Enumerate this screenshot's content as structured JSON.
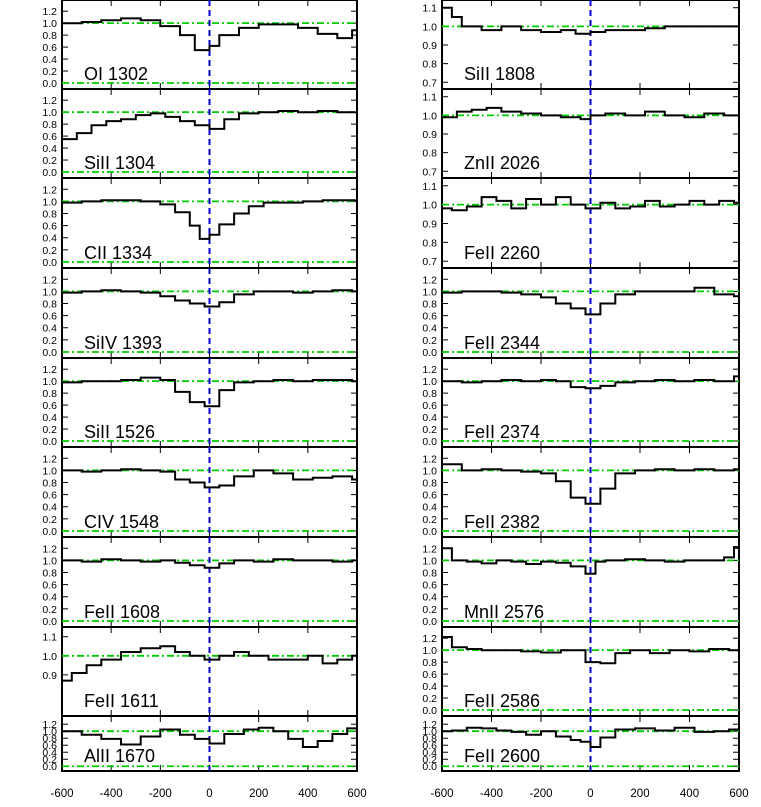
{
  "chart_data": {
    "type": "line",
    "layout": "velocity stack, 2 columns x 9 rows",
    "x_range": [
      -600,
      600
    ],
    "x_ticks": [
      -600,
      -400,
      -200,
      0,
      200,
      400,
      600
    ],
    "x_tick_labels": [
      "-600",
      "-400",
      "-200",
      "0",
      "200",
      "400",
      "600"
    ],
    "reference_lines": {
      "zero_velocity": 0,
      "flux_levels": [
        0.0,
        1.0
      ]
    },
    "grid": false,
    "colors": {
      "spectrum": "#000000",
      "continuum": "#00cc00",
      "zero_velocity": "#0000cc"
    },
    "panels": [
      {
        "label": "OI 1302",
        "column": 0,
        "ylim": [
          -0.05,
          1.32
        ],
        "y_ticks": [
          0.0,
          0.2,
          0.4,
          0.6,
          0.8,
          1.0,
          1.2
        ],
        "y_tick_labels": [
          "0.0",
          "0.2",
          "0.4",
          "0.6",
          "0.8",
          "1.0",
          "1.2"
        ],
        "x": [
          -600,
          -520,
          -440,
          -360,
          -280,
          -200,
          -120,
          -60,
          0,
          40,
          120,
          200,
          280,
          360,
          440,
          520,
          580
        ],
        "y": [
          1.0,
          1.02,
          1.05,
          1.08,
          1.05,
          0.95,
          0.8,
          0.55,
          0.62,
          0.8,
          0.92,
          0.98,
          0.98,
          0.92,
          0.82,
          0.75,
          0.88
        ]
      },
      {
        "label": "SiII 1304",
        "column": 0,
        "ylim": [
          -0.05,
          1.32
        ],
        "y_ticks": [
          0.0,
          0.2,
          0.4,
          0.6,
          0.8,
          1.0,
          1.2
        ],
        "y_tick_labels": [
          "0.0",
          "0.2",
          "0.4",
          "0.6",
          "0.8",
          "1.0",
          "1.2"
        ],
        "x": [
          -600,
          -540,
          -480,
          -420,
          -360,
          -300,
          -240,
          -180,
          -120,
          -60,
          0,
          60,
          120,
          200,
          280,
          360,
          440,
          520,
          580
        ],
        "y": [
          0.55,
          0.65,
          0.78,
          0.85,
          0.88,
          0.95,
          0.98,
          0.92,
          0.85,
          0.78,
          0.72,
          0.88,
          0.98,
          1.0,
          1.02,
          1.0,
          1.02,
          1.0,
          1.0
        ]
      },
      {
        "label": "CII 1334",
        "column": 0,
        "ylim": [
          -0.05,
          1.32
        ],
        "y_ticks": [
          0.0,
          0.2,
          0.4,
          0.6,
          0.8,
          1.0,
          1.2
        ],
        "y_tick_labels": [
          "0.0",
          "0.2",
          "0.4",
          "0.6",
          "0.8",
          "1.0",
          "1.2"
        ],
        "x": [
          -600,
          -520,
          -440,
          -360,
          -280,
          -200,
          -140,
          -80,
          -40,
          0,
          40,
          100,
          160,
          220,
          300,
          380,
          460,
          540
        ],
        "y": [
          0.98,
          1.0,
          1.02,
          1.02,
          1.0,
          0.95,
          0.82,
          0.6,
          0.38,
          0.45,
          0.62,
          0.8,
          0.92,
          0.98,
          0.98,
          1.0,
          1.02,
          1.02
        ]
      },
      {
        "label": "SiIV 1393",
        "column": 0,
        "ylim": [
          -0.05,
          1.32
        ],
        "y_ticks": [
          0.0,
          0.2,
          0.4,
          0.6,
          0.8,
          1.0,
          1.2
        ],
        "y_tick_labels": [
          "0.0",
          "0.2",
          "0.4",
          "0.6",
          "0.8",
          "1.0",
          "1.2"
        ],
        "x": [
          -600,
          -520,
          -440,
          -360,
          -280,
          -200,
          -140,
          -80,
          -20,
          40,
          100,
          180,
          260,
          340,
          420,
          500,
          580
        ],
        "y": [
          0.98,
          1.0,
          1.02,
          1.0,
          0.98,
          0.92,
          0.85,
          0.8,
          0.75,
          0.82,
          0.95,
          1.0,
          1.0,
          0.98,
          1.0,
          1.02,
          1.0
        ]
      },
      {
        "label": "SiII 1526",
        "column": 0,
        "ylim": [
          -0.05,
          1.32
        ],
        "y_ticks": [
          0.0,
          0.2,
          0.4,
          0.6,
          0.8,
          1.0,
          1.2
        ],
        "y_tick_labels": [
          "0.0",
          "0.2",
          "0.4",
          "0.6",
          "0.8",
          "1.0",
          "1.2"
        ],
        "x": [
          -600,
          -520,
          -440,
          -360,
          -280,
          -200,
          -140,
          -80,
          -20,
          40,
          100,
          180,
          260,
          340,
          420,
          500,
          580
        ],
        "y": [
          0.98,
          1.0,
          1.0,
          1.02,
          1.06,
          1.02,
          0.82,
          0.65,
          0.58,
          0.85,
          0.98,
          1.0,
          1.02,
          1.0,
          1.02,
          1.02,
          1.0
        ]
      },
      {
        "label": "CIV 1548",
        "column": 0,
        "ylim": [
          -0.05,
          1.32
        ],
        "y_ticks": [
          0.0,
          0.2,
          0.4,
          0.6,
          0.8,
          1.0,
          1.2
        ],
        "y_tick_labels": [
          "0.0",
          "0.2",
          "0.4",
          "0.6",
          "0.8",
          "1.0",
          "1.2"
        ],
        "x": [
          -600,
          -520,
          -440,
          -360,
          -280,
          -200,
          -140,
          -80,
          -20,
          40,
          100,
          180,
          260,
          340,
          420,
          500,
          580
        ],
        "y": [
          1.0,
          0.98,
          1.0,
          1.02,
          1.0,
          0.98,
          0.85,
          0.8,
          0.72,
          0.75,
          0.9,
          1.0,
          0.95,
          0.85,
          0.88,
          0.9,
          0.85
        ]
      },
      {
        "label": "FeII 1608",
        "column": 0,
        "ylim": [
          -0.05,
          1.32
        ],
        "y_ticks": [
          0.0,
          0.2,
          0.4,
          0.6,
          0.8,
          1.0,
          1.2
        ],
        "y_tick_labels": [
          "0.0",
          "0.2",
          "0.4",
          "0.6",
          "0.8",
          "1.0",
          "1.2"
        ],
        "x": [
          -600,
          -520,
          -440,
          -360,
          -280,
          -200,
          -140,
          -80,
          -20,
          40,
          100,
          180,
          260,
          340,
          420,
          500,
          580
        ],
        "y": [
          1.0,
          0.98,
          1.02,
          1.0,
          0.98,
          1.0,
          0.96,
          0.92,
          0.88,
          0.95,
          1.0,
          0.98,
          1.02,
          1.0,
          1.0,
          0.98,
          1.0
        ]
      },
      {
        "label": "FeII 1611",
        "column": 0,
        "ylim": [
          0.7,
          1.13
        ],
        "y_ticks": [
          0.8,
          0.9,
          1.0,
          1.1
        ],
        "y_tick_labels": [
          "0.9",
          "1.0",
          "1.1"
        ],
        "y_tick_values": [
          0.9,
          1.0,
          1.1
        ],
        "x": [
          -600,
          -560,
          -500,
          -440,
          -360,
          -280,
          -200,
          -140,
          -80,
          -20,
          40,
          100,
          160,
          240,
          320,
          400,
          460,
          520,
          580
        ],
        "y": [
          0.87,
          0.91,
          0.95,
          0.98,
          1.02,
          1.04,
          1.05,
          1.02,
          1.0,
          0.98,
          1.0,
          1.02,
          1.0,
          0.98,
          0.98,
          1.0,
          0.96,
          0.98,
          1.0
        ]
      },
      {
        "label": "AlII 1670",
        "column": 0,
        "ylim": [
          -0.05,
          1.32
        ],
        "y_ticks": [
          0.0,
          0.2,
          0.4,
          0.6,
          0.8,
          1.0,
          1.2
        ],
        "y_tick_labels": [
          "0.0",
          "0.2",
          "0.4",
          "0.6",
          "0.8",
          "1.0",
          "1.2"
        ],
        "x": [
          -600,
          -520,
          -440,
          -360,
          -280,
          -200,
          -120,
          -60,
          0,
          60,
          140,
          200,
          260,
          320,
          380,
          440,
          500,
          560
        ],
        "y": [
          1.0,
          0.9,
          0.78,
          0.62,
          0.85,
          1.05,
          0.9,
          0.78,
          0.65,
          0.92,
          1.05,
          1.1,
          1.0,
          0.78,
          0.55,
          0.72,
          0.92,
          1.08
        ]
      },
      {
        "label": "SiII 1808",
        "column": 1,
        "ylim": [
          0.68,
          1.12
        ],
        "y_ticks": [
          0.7,
          0.8,
          0.9,
          1.0,
          1.1
        ],
        "y_tick_labels": [
          "0.7",
          "0.8",
          "0.9",
          "1.0",
          "1.1"
        ],
        "x": [
          -600,
          -560,
          -520,
          -440,
          -360,
          -280,
          -200,
          -120,
          -60,
          0,
          60,
          140,
          220,
          300,
          380,
          460,
          540
        ],
        "y": [
          1.1,
          1.05,
          1.0,
          0.98,
          1.0,
          0.98,
          0.97,
          0.98,
          0.96,
          0.97,
          0.98,
          0.98,
          0.99,
          1.0,
          1.0,
          1.0,
          1.0
        ]
      },
      {
        "label": "ZnII 2026",
        "column": 1,
        "ylim": [
          0.68,
          1.12
        ],
        "y_ticks": [
          0.7,
          0.8,
          0.9,
          1.0,
          1.1
        ],
        "y_tick_labels": [
          "0.7",
          "0.8",
          "0.9",
          "1.0",
          "1.1"
        ],
        "x": [
          -600,
          -540,
          -480,
          -420,
          -360,
          -280,
          -200,
          -120,
          -40,
          0,
          60,
          140,
          220,
          300,
          380,
          460,
          540
        ],
        "y": [
          0.99,
          1.02,
          1.03,
          1.04,
          1.02,
          1.01,
          1.0,
          0.99,
          0.98,
          1.0,
          1.01,
          1.0,
          1.02,
          1.0,
          0.99,
          1.01,
          1.0
        ]
      },
      {
        "label": "FeII 2260",
        "column": 1,
        "ylim": [
          0.68,
          1.12
        ],
        "y_ticks": [
          0.7,
          0.8,
          0.9,
          1.0,
          1.1
        ],
        "y_tick_labels": [
          "0.7",
          "0.8",
          "0.9",
          "1.0",
          "1.1"
        ],
        "x": [
          -600,
          -560,
          -500,
          -440,
          -380,
          -320,
          -260,
          -200,
          -140,
          -80,
          -20,
          40,
          100,
          160,
          220,
          280,
          340,
          400,
          460,
          520,
          580
        ],
        "y": [
          0.98,
          0.97,
          0.99,
          1.04,
          1.02,
          0.98,
          1.03,
          1.0,
          1.04,
          1.0,
          0.98,
          1.01,
          0.98,
          0.99,
          1.02,
          0.99,
          1.0,
          1.02,
          1.0,
          1.02,
          1.01
        ]
      },
      {
        "label": "FeII 2344",
        "column": 1,
        "ylim": [
          -0.05,
          1.32
        ],
        "y_ticks": [
          0.0,
          0.2,
          0.4,
          0.6,
          0.8,
          1.0,
          1.2
        ],
        "y_tick_labels": [
          "0.0",
          "0.2",
          "0.4",
          "0.6",
          "0.8",
          "1.0",
          "1.2"
        ],
        "x": [
          -600,
          -520,
          -440,
          -360,
          -280,
          -200,
          -140,
          -80,
          -20,
          40,
          100,
          180,
          260,
          340,
          420,
          500,
          580
        ],
        "y": [
          0.98,
          1.0,
          1.0,
          0.98,
          0.95,
          0.9,
          0.8,
          0.72,
          0.62,
          0.8,
          0.95,
          1.0,
          1.0,
          1.0,
          1.06,
          0.95,
          0.92
        ]
      },
      {
        "label": "FeII 2374",
        "column": 1,
        "ylim": [
          -0.05,
          1.32
        ],
        "y_ticks": [
          0.0,
          0.2,
          0.4,
          0.6,
          0.8,
          1.0,
          1.2
        ],
        "y_tick_labels": [
          "0.0",
          "0.2",
          "0.4",
          "0.6",
          "0.8",
          "1.0",
          "1.2"
        ],
        "x": [
          -600,
          -520,
          -440,
          -360,
          -280,
          -200,
          -140,
          -80,
          -20,
          40,
          100,
          180,
          260,
          340,
          420,
          500,
          580
        ],
        "y": [
          1.0,
          0.98,
          1.0,
          1.02,
          1.0,
          1.02,
          1.0,
          0.9,
          0.88,
          0.92,
          0.98,
          1.0,
          1.02,
          1.0,
          1.02,
          1.0,
          1.08
        ]
      },
      {
        "label": "FeII 2382",
        "column": 1,
        "ylim": [
          -0.05,
          1.32
        ],
        "y_ticks": [
          0.0,
          0.2,
          0.4,
          0.6,
          0.8,
          1.0,
          1.2
        ],
        "y_tick_labels": [
          "0.0",
          "0.2",
          "0.4",
          "0.6",
          "0.8",
          "1.0",
          "1.2"
        ],
        "x": [
          -600,
          -520,
          -440,
          -360,
          -280,
          -200,
          -140,
          -80,
          -20,
          40,
          100,
          180,
          260,
          340,
          420,
          500,
          580
        ],
        "y": [
          1.1,
          1.0,
          1.02,
          1.0,
          0.98,
          0.95,
          0.82,
          0.55,
          0.45,
          0.7,
          0.95,
          1.0,
          1.02,
          1.0,
          1.02,
          1.0,
          1.02
        ]
      },
      {
        "label": "MnII 2576",
        "column": 1,
        "ylim": [
          -0.05,
          1.32
        ],
        "y_ticks": [
          0.0,
          0.2,
          0.4,
          0.6,
          0.8,
          1.0,
          1.2
        ],
        "y_tick_labels": [
          "0.0",
          "0.2",
          "0.4",
          "0.6",
          "0.8",
          "1.0",
          "1.2"
        ],
        "x": [
          -600,
          -560,
          -500,
          -440,
          -380,
          -320,
          -260,
          -200,
          -140,
          -80,
          -20,
          20,
          60,
          140,
          220,
          300,
          380,
          460,
          540,
          580
        ],
        "y": [
          1.2,
          1.0,
          0.98,
          0.95,
          1.0,
          0.98,
          0.94,
          0.98,
          0.96,
          0.9,
          0.78,
          0.98,
          1.0,
          1.02,
          1.0,
          0.98,
          1.0,
          1.0,
          1.05,
          1.22
        ]
      },
      {
        "label": "FeII 2586",
        "column": 1,
        "ylim": [
          -0.05,
          1.32
        ],
        "y_ticks": [
          0.0,
          0.2,
          0.4,
          0.6,
          0.8,
          1.0,
          1.2
        ],
        "y_tick_labels": [
          "0.0",
          "0.2",
          "0.4",
          "0.6",
          "0.8",
          "1.0",
          "1.2"
        ],
        "x": [
          -600,
          -560,
          -500,
          -440,
          -360,
          -280,
          -200,
          -120,
          -60,
          -20,
          40,
          100,
          160,
          240,
          320,
          400,
          480,
          560
        ],
        "y": [
          1.22,
          1.05,
          1.02,
          1.0,
          1.0,
          0.98,
          0.96,
          1.0,
          1.0,
          0.8,
          0.78,
          0.95,
          1.0,
          0.95,
          1.0,
          0.98,
          1.02,
          1.0
        ]
      },
      {
        "label": "FeII 2600",
        "column": 1,
        "ylim": [
          -0.05,
          1.32
        ],
        "y_ticks": [
          0.0,
          0.2,
          0.4,
          0.6,
          0.8,
          1.0,
          1.2
        ],
        "y_tick_labels": [
          "0.0",
          "0.2",
          "0.4",
          "0.6",
          "0.8",
          "1.0",
          "1.2"
        ],
        "x": [
          -600,
          -560,
          -500,
          -440,
          -380,
          -320,
          -260,
          -200,
          -140,
          -80,
          -40,
          0,
          40,
          100,
          180,
          260,
          340,
          420,
          500,
          560
        ],
        "y": [
          1.0,
          1.02,
          1.1,
          1.08,
          1.02,
          0.98,
          0.9,
          1.0,
          0.85,
          0.75,
          0.7,
          0.55,
          0.82,
          1.05,
          1.08,
          1.02,
          1.1,
          0.98,
          1.0,
          1.05
        ]
      }
    ]
  }
}
